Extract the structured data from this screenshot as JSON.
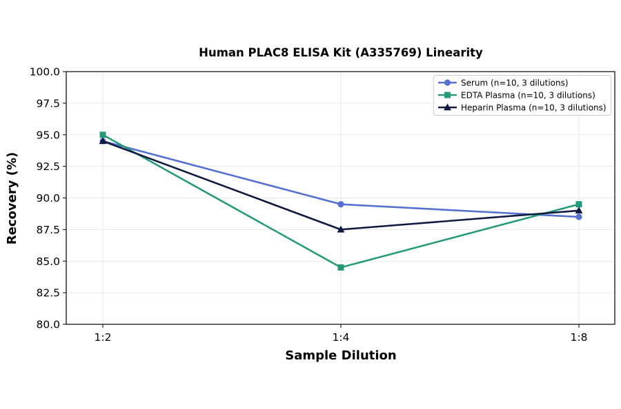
{
  "chart_data": {
    "type": "line",
    "title": "Human PLAC8 ELISA Kit (A335769) Linearity",
    "xlabel": "Sample Dilution",
    "ylabel": "Recovery (%)",
    "categories": [
      "1:2",
      "1:4",
      "1:8"
    ],
    "ylim": [
      80.0,
      100.0
    ],
    "yticks": [
      "80.0",
      "82.5",
      "85.0",
      "87.5",
      "90.0",
      "92.5",
      "95.0",
      "97.5",
      "100.0"
    ],
    "grid": true,
    "legend_position": "top-right",
    "series": [
      {
        "name": "Serum (n=10, 3 dilutions)",
        "values": [
          94.5,
          89.5,
          88.5
        ],
        "color": "#5470d0",
        "marker": "circle"
      },
      {
        "name": "EDTA Plasma (n=10, 3 dilutions)",
        "values": [
          95.0,
          84.5,
          89.5
        ],
        "color": "#259a77",
        "marker": "square"
      },
      {
        "name": "Heparin Plasma (n=10, 3 dilutions)",
        "values": [
          94.5,
          87.5,
          89.0
        ],
        "color": "#0f1a40",
        "marker": "triangle"
      }
    ]
  }
}
